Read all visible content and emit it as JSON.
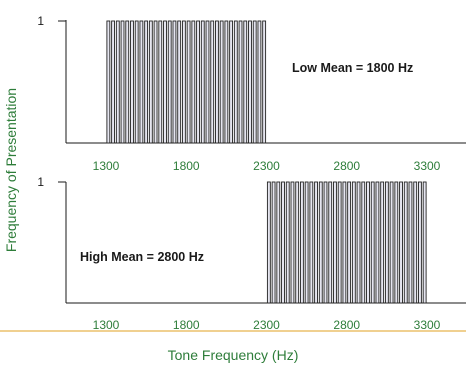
{
  "colors": {
    "axis": "#1a1a1a",
    "label_green": "#2e7d3a",
    "bar_fill": "#e6e6f0",
    "bar_stroke": "#222222",
    "divider": "#e0a020"
  },
  "figure": {
    "ylabel": "Frequency of Presentation",
    "xlabel": "Tone Frequency (Hz)"
  },
  "chart_data": [
    {
      "type": "bar",
      "title": "",
      "annotation": "Low Mean = 1800 Hz",
      "x_ticks": [
        1300,
        1800,
        2300,
        2800,
        3300
      ],
      "y_ticks": [
        1
      ],
      "xlim": [
        1030,
        3450
      ],
      "ylim": [
        0,
        1
      ],
      "bar_values": {
        "x_start": 1300,
        "x_end": 2300,
        "count": 34,
        "value": 1
      }
    },
    {
      "type": "bar",
      "title": "",
      "annotation": "High Mean = 2800 Hz",
      "x_ticks": [
        1300,
        1800,
        2300,
        2800,
        3300
      ],
      "y_ticks": [
        1
      ],
      "xlim": [
        1030,
        3450
      ],
      "ylim": [
        0,
        1
      ],
      "bar_values": {
        "x_start": 2300,
        "x_end": 3300,
        "count": 34,
        "value": 1
      }
    }
  ]
}
